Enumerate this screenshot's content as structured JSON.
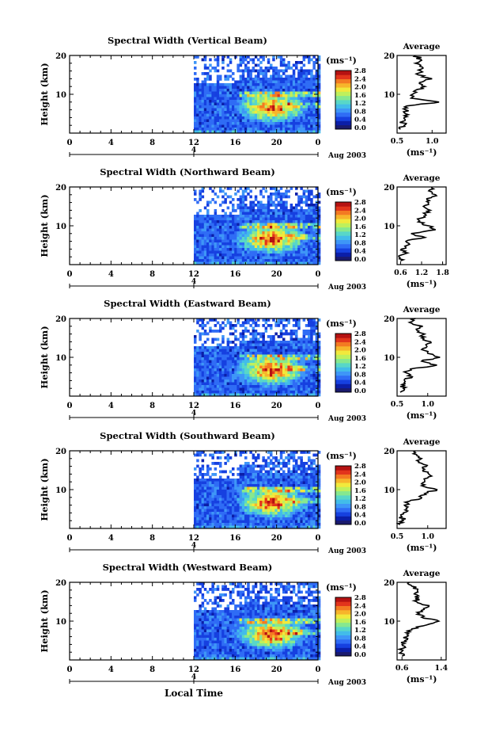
{
  "figure": {
    "xlabel_bottom": "Local Time",
    "date_label": "Aug 2003",
    "colorbar_unit": "(ms⁻¹)",
    "colorbar_ticks": [
      "0.0",
      "0.4",
      "0.8",
      "1.2",
      "1.6",
      "2.0",
      "2.4",
      "2.8"
    ],
    "avg_title": "Average",
    "avg_xlabel": "(ms⁻¹)",
    "ylabel": "Height (km)",
    "xticks": [
      "0",
      "4",
      "8",
      "12",
      "16",
      "20",
      "0"
    ],
    "yticks": [
      "10",
      "20"
    ],
    "day_label": "4",
    "colormap": [
      "#1a1a6e",
      "#0b1ea8",
      "#1640e0",
      "#2f6cf5",
      "#3e96f7",
      "#42bce9",
      "#58d7c8",
      "#86e88f",
      "#bff05c",
      "#f1e93c",
      "#f7b52b",
      "#f37a22",
      "#e2341c",
      "#b51212"
    ]
  },
  "chart_data": [
    {
      "type": "heatmap",
      "title": "Spectral Width (Vertical Beam)",
      "x_range_hours": [
        0,
        24
      ],
      "data_start_hour": 12,
      "ylim_km": [
        0,
        20
      ],
      "clim": [
        0.0,
        2.8
      ],
      "tick_labels": [
        "0",
        "4",
        "8",
        "12",
        "16",
        "20",
        "0"
      ],
      "average_profile": {
        "type": "line",
        "xticks": [
          "0.5",
          "1.0"
        ],
        "xlim": [
          0.5,
          1.2
        ],
        "height_km": [
          1,
          2,
          3,
          4,
          5,
          6,
          7,
          8,
          9,
          10,
          11,
          12,
          13,
          14,
          15,
          16,
          17,
          18,
          19,
          20
        ],
        "values": [
          0.55,
          0.6,
          0.58,
          0.6,
          0.62,
          0.62,
          0.64,
          1.1,
          0.7,
          0.72,
          0.76,
          0.9,
          0.82,
          1.0,
          0.8,
          0.84,
          0.86,
          0.76,
          0.84,
          0.76
        ]
      }
    },
    {
      "type": "heatmap",
      "title": "Spectral Width (Northward Beam)",
      "x_range_hours": [
        0,
        24
      ],
      "data_start_hour": 12,
      "ylim_km": [
        0,
        20
      ],
      "clim": [
        0.0,
        2.8
      ],
      "tick_labels": [
        "0",
        "4",
        "8",
        "12",
        "16",
        "20",
        "0"
      ],
      "average_profile": {
        "type": "line",
        "xticks": [
          "0.6",
          "1.2",
          "1.8"
        ],
        "xlim": [
          0.5,
          1.9
        ],
        "height_km": [
          1,
          2,
          3,
          4,
          5,
          6,
          7,
          8,
          9,
          10,
          11,
          12,
          13,
          14,
          15,
          16,
          17,
          18,
          19,
          20
        ],
        "values": [
          0.6,
          0.55,
          0.8,
          0.62,
          0.8,
          0.75,
          1.3,
          0.9,
          1.6,
          1.4,
          1.1,
          1.2,
          1.3,
          1.45,
          1.25,
          1.4,
          1.35,
          1.6,
          1.4,
          1.5
        ]
      }
    },
    {
      "type": "heatmap",
      "title": "Spectral Width (Eastward Beam)",
      "x_range_hours": [
        0,
        24
      ],
      "data_start_hour": 12,
      "ylim_km": [
        0,
        20
      ],
      "clim": [
        0.0,
        2.8
      ],
      "tick_labels": [
        "0",
        "4",
        "8",
        "12",
        "16",
        "20",
        "0"
      ],
      "average_profile": {
        "type": "line",
        "xticks": [
          "0.5",
          "1.0"
        ],
        "xlim": [
          0.5,
          1.3
        ],
        "height_km": [
          1,
          2,
          3,
          4,
          5,
          6,
          7,
          8,
          9,
          10,
          11,
          12,
          13,
          14,
          15,
          16,
          17,
          18,
          19,
          20
        ],
        "values": [
          0.55,
          0.6,
          0.58,
          0.62,
          0.75,
          0.65,
          0.72,
          1.15,
          0.9,
          1.2,
          1.0,
          0.9,
          0.98,
          1.05,
          0.9,
          0.95,
          0.82,
          0.92,
          0.7,
          0.8
        ]
      }
    },
    {
      "type": "heatmap",
      "title": "Spectral Width (Southward Beam)",
      "x_range_hours": [
        0,
        24
      ],
      "data_start_hour": 12,
      "ylim_km": [
        0,
        20
      ],
      "clim": [
        0.0,
        2.8
      ],
      "tick_labels": [
        "0",
        "4",
        "8",
        "12",
        "16",
        "20",
        "0"
      ],
      "average_profile": {
        "type": "line",
        "xticks": [
          "0.5",
          "1.0"
        ],
        "xlim": [
          0.5,
          1.3
        ],
        "height_km": [
          1,
          2,
          3,
          4,
          5,
          6,
          7,
          8,
          9,
          10,
          11,
          12,
          13,
          14,
          15,
          16,
          17,
          18,
          19,
          20
        ],
        "values": [
          0.55,
          0.6,
          0.58,
          0.6,
          0.66,
          0.62,
          0.7,
          0.9,
          0.95,
          1.15,
          0.9,
          0.95,
          1.0,
          1.02,
          0.92,
          0.98,
          0.85,
          0.9,
          0.82,
          0.8
        ]
      }
    },
    {
      "type": "heatmap",
      "title": "Spectral Width (Westward Beam)",
      "x_range_hours": [
        0,
        24
      ],
      "data_start_hour": 12,
      "ylim_km": [
        0,
        20
      ],
      "clim": [
        0.0,
        2.8
      ],
      "tick_labels": [
        "0",
        "4",
        "8",
        "12",
        "16",
        "20",
        "0"
      ],
      "average_profile": {
        "type": "line",
        "xticks": [
          "0.6",
          "1.4"
        ],
        "xlim": [
          0.5,
          1.5
        ],
        "height_km": [
          1,
          2,
          3,
          4,
          5,
          6,
          7,
          8,
          9,
          10,
          11,
          12,
          13,
          14,
          15,
          16,
          17,
          18,
          19,
          20
        ],
        "values": [
          0.6,
          0.58,
          0.62,
          0.6,
          0.66,
          0.7,
          0.68,
          0.8,
          1.1,
          1.35,
          1.0,
          0.95,
          1.05,
          1.15,
          0.9,
          0.95,
          0.85,
          0.92,
          0.8,
          0.75
        ]
      }
    }
  ]
}
